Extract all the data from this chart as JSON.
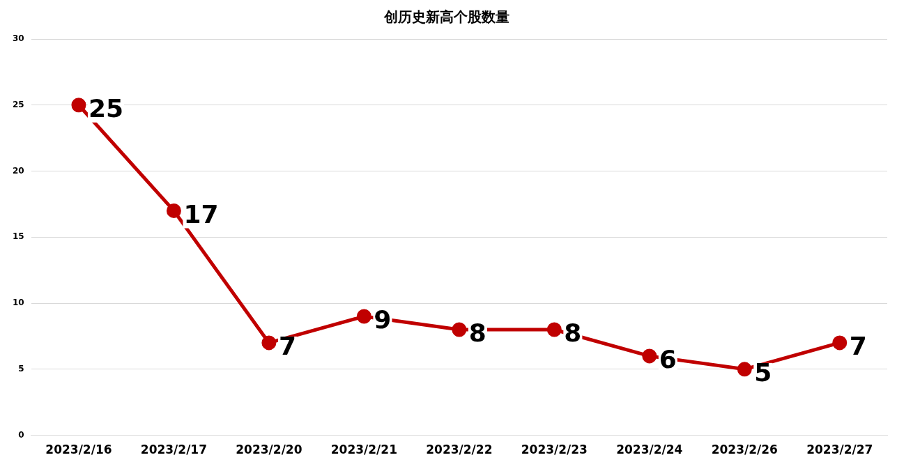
{
  "chart_data": {
    "type": "line",
    "title": "创历史新高个股数量",
    "categories": [
      "2023/2/16",
      "2023/2/17",
      "2023/2/20",
      "2023/2/21",
      "2023/2/22",
      "2023/2/23",
      "2023/2/24",
      "2023/2/26",
      "2023/2/27"
    ],
    "series": [
      {
        "color": "#c00000",
        "values": [
          25,
          17,
          7,
          9,
          8,
          8,
          6,
          5,
          7
        ]
      }
    ],
    "ylim": [
      0,
      30
    ],
    "yticks": [
      0,
      5,
      10,
      15,
      20,
      25,
      30
    ],
    "grid": "y",
    "legend": false,
    "marker": "circle",
    "line_style": "solid",
    "data_labels": true
  }
}
